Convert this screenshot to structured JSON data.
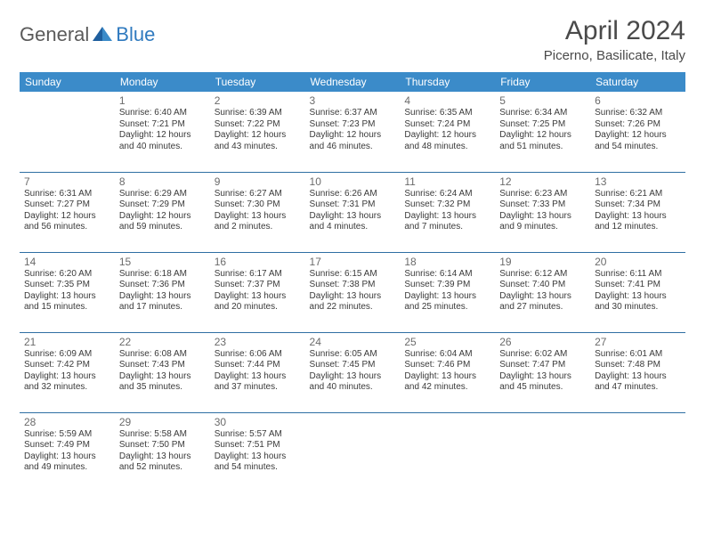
{
  "logo": {
    "text1": "General",
    "text2": "Blue"
  },
  "title": "April 2024",
  "location": "Picerno, Basilicate, Italy",
  "colors": {
    "header_bg": "#3b8bc9",
    "header_text": "#ffffff",
    "cell_border": "#2f6fa3",
    "daynum_color": "#6b6b6b",
    "info_color": "#3a3a3a",
    "logo_gray": "#5a5a5a",
    "logo_blue": "#2f7abf"
  },
  "weekdays": [
    "Sunday",
    "Monday",
    "Tuesday",
    "Wednesday",
    "Thursday",
    "Friday",
    "Saturday"
  ],
  "weeks": [
    [
      null,
      {
        "d": "1",
        "sr": "6:40 AM",
        "ss": "7:21 PM",
        "dl": "12 hours and 40 minutes."
      },
      {
        "d": "2",
        "sr": "6:39 AM",
        "ss": "7:22 PM",
        "dl": "12 hours and 43 minutes."
      },
      {
        "d": "3",
        "sr": "6:37 AM",
        "ss": "7:23 PM",
        "dl": "12 hours and 46 minutes."
      },
      {
        "d": "4",
        "sr": "6:35 AM",
        "ss": "7:24 PM",
        "dl": "12 hours and 48 minutes."
      },
      {
        "d": "5",
        "sr": "6:34 AM",
        "ss": "7:25 PM",
        "dl": "12 hours and 51 minutes."
      },
      {
        "d": "6",
        "sr": "6:32 AM",
        "ss": "7:26 PM",
        "dl": "12 hours and 54 minutes."
      }
    ],
    [
      {
        "d": "7",
        "sr": "6:31 AM",
        "ss": "7:27 PM",
        "dl": "12 hours and 56 minutes."
      },
      {
        "d": "8",
        "sr": "6:29 AM",
        "ss": "7:29 PM",
        "dl": "12 hours and 59 minutes."
      },
      {
        "d": "9",
        "sr": "6:27 AM",
        "ss": "7:30 PM",
        "dl": "13 hours and 2 minutes."
      },
      {
        "d": "10",
        "sr": "6:26 AM",
        "ss": "7:31 PM",
        "dl": "13 hours and 4 minutes."
      },
      {
        "d": "11",
        "sr": "6:24 AM",
        "ss": "7:32 PM",
        "dl": "13 hours and 7 minutes."
      },
      {
        "d": "12",
        "sr": "6:23 AM",
        "ss": "7:33 PM",
        "dl": "13 hours and 9 minutes."
      },
      {
        "d": "13",
        "sr": "6:21 AM",
        "ss": "7:34 PM",
        "dl": "13 hours and 12 minutes."
      }
    ],
    [
      {
        "d": "14",
        "sr": "6:20 AM",
        "ss": "7:35 PM",
        "dl": "13 hours and 15 minutes."
      },
      {
        "d": "15",
        "sr": "6:18 AM",
        "ss": "7:36 PM",
        "dl": "13 hours and 17 minutes."
      },
      {
        "d": "16",
        "sr": "6:17 AM",
        "ss": "7:37 PM",
        "dl": "13 hours and 20 minutes."
      },
      {
        "d": "17",
        "sr": "6:15 AM",
        "ss": "7:38 PM",
        "dl": "13 hours and 22 minutes."
      },
      {
        "d": "18",
        "sr": "6:14 AM",
        "ss": "7:39 PM",
        "dl": "13 hours and 25 minutes."
      },
      {
        "d": "19",
        "sr": "6:12 AM",
        "ss": "7:40 PM",
        "dl": "13 hours and 27 minutes."
      },
      {
        "d": "20",
        "sr": "6:11 AM",
        "ss": "7:41 PM",
        "dl": "13 hours and 30 minutes."
      }
    ],
    [
      {
        "d": "21",
        "sr": "6:09 AM",
        "ss": "7:42 PM",
        "dl": "13 hours and 32 minutes."
      },
      {
        "d": "22",
        "sr": "6:08 AM",
        "ss": "7:43 PM",
        "dl": "13 hours and 35 minutes."
      },
      {
        "d": "23",
        "sr": "6:06 AM",
        "ss": "7:44 PM",
        "dl": "13 hours and 37 minutes."
      },
      {
        "d": "24",
        "sr": "6:05 AM",
        "ss": "7:45 PM",
        "dl": "13 hours and 40 minutes."
      },
      {
        "d": "25",
        "sr": "6:04 AM",
        "ss": "7:46 PM",
        "dl": "13 hours and 42 minutes."
      },
      {
        "d": "26",
        "sr": "6:02 AM",
        "ss": "7:47 PM",
        "dl": "13 hours and 45 minutes."
      },
      {
        "d": "27",
        "sr": "6:01 AM",
        "ss": "7:48 PM",
        "dl": "13 hours and 47 minutes."
      }
    ],
    [
      {
        "d": "28",
        "sr": "5:59 AM",
        "ss": "7:49 PM",
        "dl": "13 hours and 49 minutes."
      },
      {
        "d": "29",
        "sr": "5:58 AM",
        "ss": "7:50 PM",
        "dl": "13 hours and 52 minutes."
      },
      {
        "d": "30",
        "sr": "5:57 AM",
        "ss": "7:51 PM",
        "dl": "13 hours and 54 minutes."
      },
      null,
      null,
      null,
      null
    ]
  ],
  "labels": {
    "sunrise": "Sunrise:",
    "sunset": "Sunset:",
    "daylight": "Daylight:"
  }
}
